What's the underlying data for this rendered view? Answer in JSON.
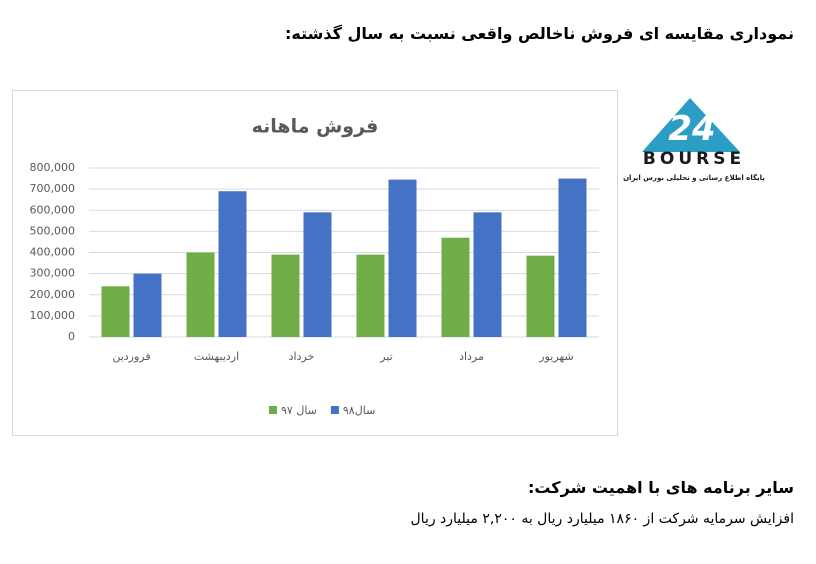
{
  "heading": "نمودارى مقايسه اى فروش ناخالص واقعى نسبت به سال گذشته:",
  "chart_data": {
    "type": "bar",
    "title": "فروش ماهانه",
    "categories": [
      "فروردین",
      "اردیبهشت",
      "خرداد",
      "تیر",
      "مرداد",
      "شهریور"
    ],
    "series": [
      {
        "name": "سال ۹۷",
        "color": "#70ad47",
        "values": [
          240000,
          400000,
          390000,
          390000,
          470000,
          385000
        ]
      },
      {
        "name": "سال۹۸",
        "color": "#4472c4",
        "values": [
          300000,
          690000,
          590000,
          745000,
          590000,
          750000
        ]
      }
    ],
    "ylim": [
      0,
      800000
    ],
    "yticks": [
      0,
      {
        "value": 100000,
        "label": "100,000"
      },
      {
        "value": 200000,
        "label": "200,000"
      },
      {
        "value": 300000,
        "label": "300,000"
      },
      {
        "value": 400000,
        "label": "400,000"
      },
      {
        "value": 500000,
        "label": "500,000"
      },
      {
        "value": 600000,
        "label": "600,000"
      },
      {
        "value": 700000,
        "label": "700,000"
      },
      {
        "value": 800000,
        "label": "800,000"
      }
    ],
    "grid": true,
    "legend": "bottom"
  },
  "logo": {
    "mark": "24",
    "name": "BOURSE",
    "tagline": "پایگاه اطلاع رسانی و تحلیلی بورس ایران"
  },
  "section_title": "ساير برنامه هاى با اهميت شركت:",
  "paragraph": "افزايش سرمايه شركت از ۱۸۶۰ ميليارد ريال به ۲,۲۰۰ ميليارد ريال"
}
